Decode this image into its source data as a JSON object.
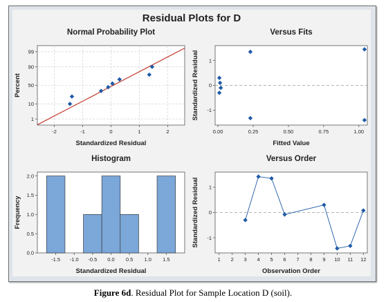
{
  "figure_title": "Residual Plots for D",
  "caption": {
    "label": "Figure 6d",
    "text": ". Residual Plot for Sample Location D (soil)."
  },
  "colors": {
    "marker": "#1f5aa6",
    "fitline": "#c0392b",
    "bar": "#7ba7d9",
    "bar_edge": "#3b3b3b",
    "refline": "#9a9a9a",
    "panel": "#f2f2f2"
  },
  "chart_data": [
    {
      "type": "scatter",
      "title": "Normal Probability Plot",
      "xlabel": "Standardized Residual",
      "ylabel": "Percent",
      "xlim": [
        -2.6,
        2.6
      ],
      "xticks": [
        -2,
        -1,
        0,
        1,
        2
      ],
      "yticks": [
        1,
        10,
        50,
        90,
        99
      ],
      "ylim": [
        1,
        99
      ],
      "y_scale": "normal-probability",
      "grid": true,
      "fit_line": {
        "x": [
          -2.6,
          2.6
        ],
        "y": [
          0.32,
          99.5
        ]
      },
      "points": [
        {
          "x": -1.45,
          "y": 10.0
        },
        {
          "x": -1.38,
          "y": 22.0
        },
        {
          "x": -0.35,
          "y": 35.0
        },
        {
          "x": -0.1,
          "y": 45.0
        },
        {
          "x": 0.05,
          "y": 55.0
        },
        {
          "x": 0.3,
          "y": 66.0
        },
        {
          "x": 1.35,
          "y": 77.0
        },
        {
          "x": 1.45,
          "y": 90.0
        }
      ]
    },
    {
      "type": "scatter",
      "title": "Versus Fits",
      "xlabel": "Fitted Value",
      "ylabel": "Standardized Residual",
      "xlim": [
        -0.02,
        1.06
      ],
      "ylim": [
        -1.6,
        1.6
      ],
      "xticks": [
        "0.00",
        "0.25",
        "0.50",
        "0.75",
        "1.00"
      ],
      "yticks": [
        -1,
        0,
        1
      ],
      "reference_line_y": 0,
      "points": [
        {
          "x": 0.01,
          "y": 0.3
        },
        {
          "x": 0.015,
          "y": 0.1
        },
        {
          "x": 0.02,
          "y": -0.1
        },
        {
          "x": 0.01,
          "y": -0.3
        },
        {
          "x": 0.23,
          "y": 1.35
        },
        {
          "x": 0.23,
          "y": -1.32
        },
        {
          "x": 1.04,
          "y": 1.45
        },
        {
          "x": 1.04,
          "y": -1.4
        }
      ]
    },
    {
      "type": "bar",
      "title": "Histogram",
      "xlabel": "Standardized Residual",
      "ylabel": "Frequency",
      "xlim": [
        -2.0,
        2.0
      ],
      "ylim": [
        0,
        2.1
      ],
      "xticks": [
        "-1.5",
        "-1.0",
        "-0.5",
        "0.0",
        "0.5",
        "1.0",
        "1.5"
      ],
      "yticks": [
        "0.0",
        "0.5",
        "1.0",
        "1.5",
        "2.0"
      ],
      "bins": [
        {
          "center": -1.5,
          "count": 2
        },
        {
          "center": -0.5,
          "count": 1
        },
        {
          "center": 0.0,
          "count": 2
        },
        {
          "center": 0.5,
          "count": 1
        },
        {
          "center": 1.5,
          "count": 2
        }
      ],
      "bin_width": 0.5
    },
    {
      "type": "line",
      "title": "Versus Order",
      "xlabel": "Observation Order",
      "ylabel": "Standardized Residual",
      "xlim": [
        0.7,
        12.3
      ],
      "ylim": [
        -1.6,
        1.6
      ],
      "xticks": [
        1,
        2,
        3,
        4,
        5,
        6,
        7,
        8,
        9,
        10,
        11,
        12
      ],
      "yticks": [
        -1,
        0,
        1
      ],
      "reference_line_y": 0,
      "points": [
        {
          "x": 3,
          "y": -0.3
        },
        {
          "x": 4,
          "y": 1.42
        },
        {
          "x": 5,
          "y": 1.35
        },
        {
          "x": 6,
          "y": -0.08
        },
        {
          "x": 9,
          "y": 0.3
        },
        {
          "x": 10,
          "y": -1.42
        },
        {
          "x": 11,
          "y": -1.32
        },
        {
          "x": 12,
          "y": 0.08
        }
      ]
    }
  ]
}
